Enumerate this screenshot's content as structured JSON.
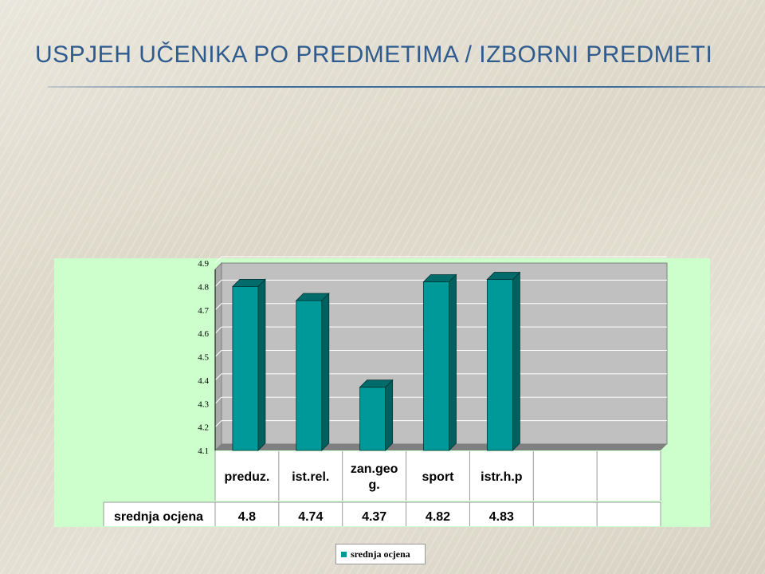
{
  "slide": {
    "title": "USPJEH UČENIKA PO PREDMETIMA / IZBORNI PREDMETI"
  },
  "colors": {
    "bar_front": "#009999",
    "bar_side": "#005f5f",
    "bar_top": "#006b6b",
    "plot_background": "#c0c0c0",
    "chart_area": "#ccffcc",
    "title": "#2f5b8f"
  },
  "chart_data": {
    "type": "bar",
    "style": "3d-column",
    "categories": [
      "preduz.",
      "ist.rel.",
      "zan.geo g.",
      "sport",
      "istr.h.p"
    ],
    "category_lines": [
      [
        "preduz."
      ],
      [
        "ist.rel."
      ],
      [
        "zan.geo",
        "g."
      ],
      [
        "sport"
      ],
      [
        "istr.h.p"
      ]
    ],
    "series": [
      {
        "name": "srednja ocjena",
        "values": [
          4.8,
          4.74,
          4.37,
          4.82,
          4.83
        ]
      }
    ],
    "value_labels": [
      "4.8",
      "4.74",
      "4.37",
      "4.82",
      "4.83"
    ],
    "empty_table_columns": 2,
    "y_ticks": [
      "4.1",
      "4.2",
      "4.3",
      "4.4",
      "4.5",
      "4.6",
      "4.7",
      "4.8",
      "4.9"
    ],
    "ylim": [
      4.1,
      4.9
    ],
    "grid": true,
    "legend": {
      "position": "bottom",
      "label": "srednja ocjena"
    },
    "data_table": true
  }
}
